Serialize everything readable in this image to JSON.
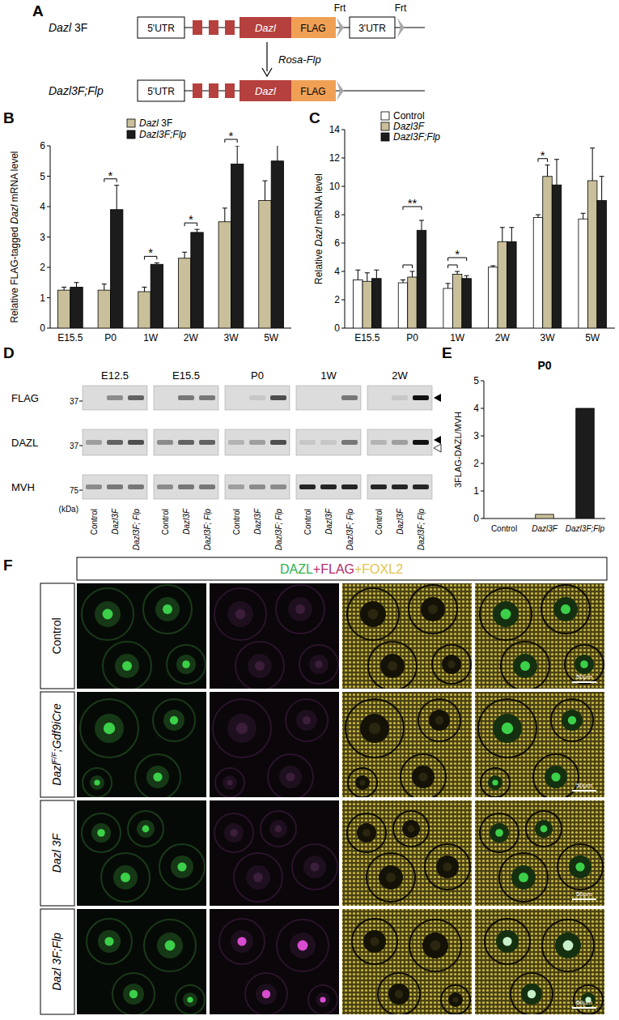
{
  "chart_data": [
    {
      "type": "bar",
      "y_label": "Relative FLAG-tagged Dazl mRNA level",
      "categories": [
        "E15.5",
        "P0",
        "1W",
        "2W",
        "3W",
        "5W"
      ],
      "series": [
        {
          "name": "Dazl 3F",
          "color": "#c9c09b",
          "values": [
            1.25,
            1.25,
            1.2,
            2.3,
            3.5,
            4.2
          ],
          "errors": [
            0.1,
            0.2,
            0.15,
            0.2,
            0.45,
            0.65
          ]
        },
        {
          "name": "Dazl3F;Flp",
          "color": "#1c1c1c",
          "values": [
            1.35,
            3.9,
            2.1,
            3.15,
            5.4,
            5.5
          ],
          "errors": [
            0.15,
            0.8,
            0.05,
            0.1,
            0.6,
            0.55
          ]
        }
      ],
      "ylim": [
        0,
        6
      ],
      "yticks": [
        0,
        1,
        2,
        3,
        4,
        5,
        6
      ],
      "legend": "top",
      "annotations": [
        {
          "category": "P0",
          "between": [
            "Dazl 3F",
            "Dazl3F;Flp"
          ],
          "text": "*"
        },
        {
          "category": "1W",
          "between": [
            "Dazl 3F",
            "Dazl3F;Flp"
          ],
          "text": "*"
        },
        {
          "category": "2W",
          "between": [
            "Dazl 3F",
            "Dazl3F;Flp"
          ],
          "text": "*"
        },
        {
          "category": "3W",
          "between": [
            "Dazl 3F",
            "Dazl3F;Flp"
          ],
          "text": "*"
        }
      ]
    },
    {
      "type": "bar",
      "y_label": "Relative Dazl mRNA level",
      "categories": [
        "E15.5",
        "P0",
        "1W",
        "2W",
        "3W",
        "5W"
      ],
      "series": [
        {
          "name": "Control",
          "color": "#ffffff",
          "values": [
            3.4,
            3.2,
            2.8,
            4.3,
            7.8,
            7.7
          ],
          "errors": [
            0.7,
            0.2,
            0.35,
            0.1,
            0.2,
            0.4
          ]
        },
        {
          "name": "Dazl3F",
          "color": "#c9c09b",
          "values": [
            3.3,
            3.6,
            3.8,
            6.1,
            10.7,
            10.4
          ],
          "errors": [
            0.6,
            0.4,
            0.2,
            1.0,
            0.8,
            2.3
          ]
        },
        {
          "name": "Dazl3F;Flp",
          "color": "#1c1c1c",
          "values": [
            3.5,
            6.9,
            3.5,
            6.1,
            10.1,
            9.0
          ],
          "errors": [
            0.6,
            0.7,
            0.2,
            1.0,
            1.8,
            1.7
          ]
        }
      ],
      "ylim": [
        0,
        14
      ],
      "yticks": [
        0,
        2,
        4,
        6,
        8,
        10,
        12,
        14
      ],
      "legend": "top-left",
      "annotations": [
        {
          "category": "P0",
          "between": [
            "Control",
            "Dazl3F"
          ]
        },
        {
          "category": "P0",
          "between": [
            "Control",
            "Dazl3F;Flp"
          ],
          "text": "**"
        },
        {
          "category": "1W",
          "between": [
            "Control",
            "Dazl3F"
          ]
        },
        {
          "category": "1W",
          "between": [
            "Control",
            "Dazl3F;Flp"
          ],
          "text": "*"
        },
        {
          "category": "3W",
          "between": [
            "Control",
            "Dazl3F"
          ],
          "text": "*"
        }
      ]
    },
    {
      "type": "bar",
      "title": "P0",
      "y_label": "3FLAG-DAZL/MVH",
      "categories": [
        "Control",
        "Dazl3F",
        "Dazl3F;Flp"
      ],
      "values": [
        0,
        0.15,
        4.0
      ],
      "colors": [
        "#ffffff",
        "#c9c09b",
        "#1c1c1c"
      ],
      "ylim": [
        0,
        5
      ],
      "yticks": [
        0,
        1,
        2,
        3,
        4,
        5
      ]
    }
  ],
  "panel_labels": [
    "A",
    "B",
    "C",
    "D",
    "E",
    "F"
  ],
  "construct": {
    "rows": [
      {
        "label": "Dazl 3F",
        "parts": [
          "5'UTR",
          "Dazl",
          "FLAG",
          "3'UTR"
        ]
      },
      {
        "label": "Dazl3F;Flp",
        "parts": [
          "5'UTR",
          "Dazl",
          "FLAG"
        ]
      }
    ],
    "frt": [
      "Frt",
      "Frt"
    ],
    "arrow_label": "Rosa-Flp"
  },
  "western_blot": {
    "timepoints": [
      "E12.5",
      "E15.5",
      "P0",
      "1W",
      "2W"
    ],
    "lanes": [
      "Control",
      "Dazl3F",
      "Dazl3F; Flp"
    ],
    "rows": [
      {
        "label": "FLAG",
        "marker": 37
      },
      {
        "label": "DAZL",
        "marker": 37
      },
      {
        "label": "MVH",
        "marker": 75
      }
    ],
    "unit": "(kDa)"
  },
  "immunofluorescence": {
    "header": [
      {
        "text": "DAZL",
        "color": "#2bb34a"
      },
      {
        "text": "+FLAG",
        "color": "#b02a6a"
      },
      {
        "text": "+FOXL2",
        "color": "#e2c44a"
      }
    ],
    "rows": [
      {
        "text": "Control"
      },
      {
        "text": "Dazl",
        "sup": "F/F",
        "after": ";Gdf9iCre"
      },
      {
        "text": "Dazl 3F"
      },
      {
        "text": "Dazl 3F;Flp"
      }
    ],
    "scale_bar": "50μm"
  }
}
